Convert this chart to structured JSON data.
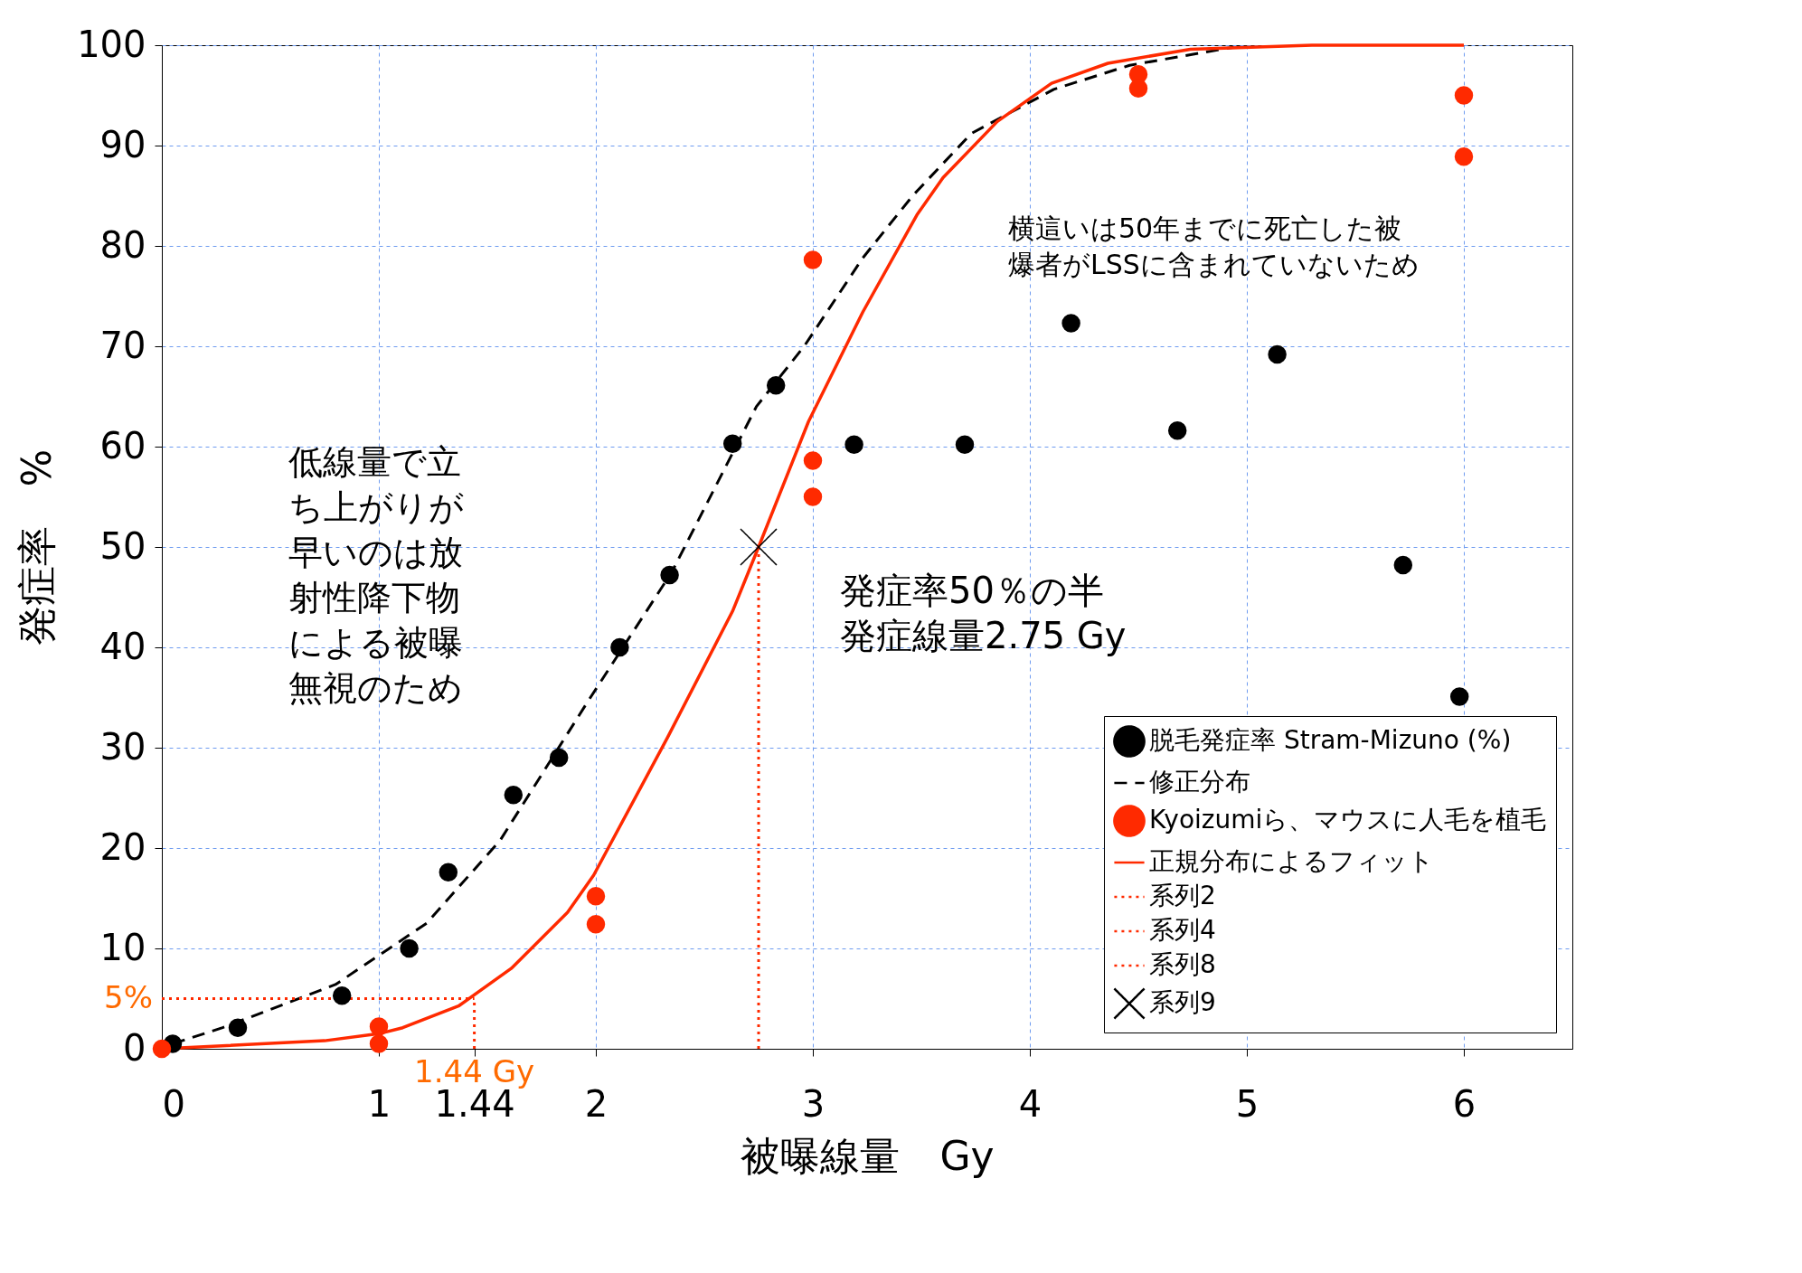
{
  "chart_data": {
    "type": "scatter",
    "xlabel": "被曝線量　Gy",
    "ylabel": "発症率　%",
    "xlim": [
      0,
      6.5
    ],
    "xticks": [
      0,
      1,
      {
        "value": 1.44,
        "label": "1.44"
      },
      2,
      3,
      4,
      5,
      6
    ],
    "ylim": [
      0,
      100
    ],
    "yticks": [
      0,
      10,
      20,
      30,
      40,
      50,
      60,
      70,
      80,
      90,
      100
    ],
    "grid": true,
    "legend": "bottom right",
    "series": [
      {
        "name": "脱毛発症率 Stram-Mizuno (%)",
        "color": "#000000",
        "marker": "circle",
        "x": [
          0.05,
          0.35,
          0.83,
          1.14,
          1.32,
          1.62,
          1.83,
          2.11,
          2.34,
          2.63,
          2.83,
          3.19,
          3.7,
          4.19,
          4.68,
          5.14,
          5.72,
          5.98
        ],
        "values": [
          0.5,
          2.1,
          5.3,
          10,
          17.6,
          25.3,
          29,
          40,
          47.2,
          60.3,
          66.1,
          60.2,
          60.2,
          72.3,
          61.6,
          69.2,
          48.2,
          35.1
        ]
      },
      {
        "type": "line",
        "name": "修正分布",
        "color": "#000000",
        "line_style": "dashed",
        "x": [
          0.05,
          0.28,
          0.8,
          1.22,
          1.56,
          1.96,
          2.35,
          2.74,
          2.96,
          3.23,
          3.46,
          3.73,
          4.11,
          4.46,
          4.94
        ],
        "values": [
          0.5,
          2.1,
          6.4,
          12.5,
          20.8,
          34.5,
          47.5,
          64,
          70,
          78.8,
          85,
          91.2,
          95.6,
          98,
          99.8
        ]
      },
      {
        "name": "Kyoizumiら、マウスに人毛を植毛",
        "color": "#ff2a00",
        "marker": "circle",
        "x": [
          0,
          1,
          1,
          2,
          2,
          3,
          3,
          3,
          4.5,
          4.5,
          6,
          6
        ],
        "values": [
          0,
          2.2,
          0.5,
          15.2,
          12.4,
          78.6,
          58.6,
          55,
          97.1,
          95.7,
          95,
          88.9
        ]
      },
      {
        "type": "line",
        "name": "正規分布によるフィット",
        "color": "#ff2a00",
        "line_style": "solid",
        "x": [
          0,
          0.75,
          1,
          1.11,
          1.37,
          1.61,
          1.87,
          1.99,
          2.33,
          2.63,
          2.75,
          2.98,
          3.23,
          3.48,
          3.6,
          3.85,
          4.1,
          4.36,
          4.74,
          5.3,
          6
        ],
        "values": [
          0,
          0.8,
          1.5,
          2.1,
          4.3,
          8,
          13.6,
          17.3,
          31,
          43.6,
          50,
          62.5,
          73.4,
          83.1,
          86.8,
          92.4,
          96.2,
          98.2,
          99.6,
          100,
          100
        ]
      },
      {
        "type": "line",
        "name": "系列2",
        "color": "#ff2a00",
        "line_style": "dotted",
        "x": [
          0,
          1.44
        ],
        "values": [
          5,
          5
        ]
      },
      {
        "type": "line",
        "name": "系列4",
        "color": "#ff2a00",
        "line_style": "dotted",
        "x": [
          1.44,
          1.44
        ],
        "values": [
          0,
          5
        ]
      },
      {
        "type": "line",
        "name": "系列8",
        "color": "#ff2a00",
        "line_style": "dotted",
        "x": [
          2.75,
          2.75
        ],
        "values": [
          0,
          50
        ]
      },
      {
        "name": "系列9",
        "color": "#000000",
        "marker": "cross",
        "x": [
          2.75
        ],
        "values": [
          50
        ]
      }
    ],
    "annotations": [
      "低線量で立ち上がりが早いのは放射性降下物による被曝無視のため",
      "横這いは50年までに死亡した被爆者がLSSに含まれていないため",
      {
        "text": "発症率50％の半発症線量2.75 Gy",
        "x": 2.75,
        "y": 50
      },
      {
        "text": "5%",
        "x": 0,
        "y": 5
      },
      {
        "text": "1.44 Gy",
        "x": 1.44,
        "y": 0
      }
    ]
  }
}
